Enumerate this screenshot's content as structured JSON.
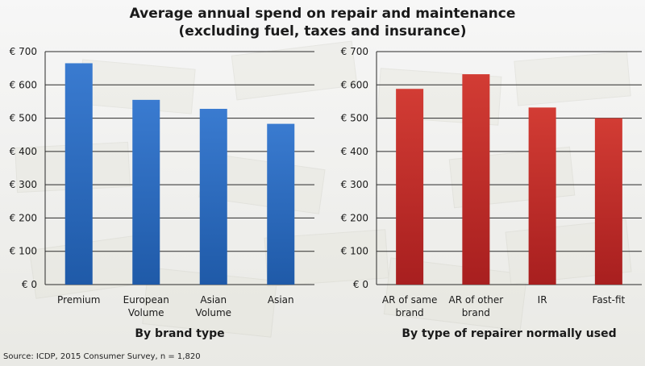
{
  "title_lines": [
    "Average annual spend on repair and maintenance",
    "(excluding fuel, taxes and insurance)"
  ],
  "source": "Source: ICDP, 2015 Consumer Survey, n = 1,820",
  "colors": {
    "blue": "#3a7bd0",
    "blue_dark": "#1f5aa8",
    "red": "#d23c34",
    "red_dark": "#a81f1f"
  },
  "chart_data": [
    {
      "type": "bar",
      "xlabel": "By brand type",
      "ylabel": "",
      "ylim": [
        0,
        700
      ],
      "y_ticks": [
        0,
        100,
        200,
        300,
        400,
        500,
        600,
        700
      ],
      "tick_format": "€ {v}",
      "grid": true,
      "color": "blue",
      "categories": [
        [
          "Premium"
        ],
        [
          "European",
          "Volume"
        ],
        [
          "Asian",
          "Volume"
        ],
        [
          "Asian"
        ]
      ],
      "values": [
        665,
        555,
        528,
        483
      ]
    },
    {
      "type": "bar",
      "xlabel": "By type of repairer normally used",
      "ylabel": "",
      "ylim": [
        0,
        700
      ],
      "y_ticks": [
        0,
        100,
        200,
        300,
        400,
        500,
        600,
        700
      ],
      "tick_format": "€ {v}",
      "grid": true,
      "color": "red",
      "categories": [
        [
          "AR of same",
          "brand"
        ],
        [
          "AR of other",
          "brand"
        ],
        [
          "IR"
        ],
        [
          "Fast-fit"
        ]
      ],
      "values": [
        588,
        632,
        532,
        500
      ]
    }
  ]
}
